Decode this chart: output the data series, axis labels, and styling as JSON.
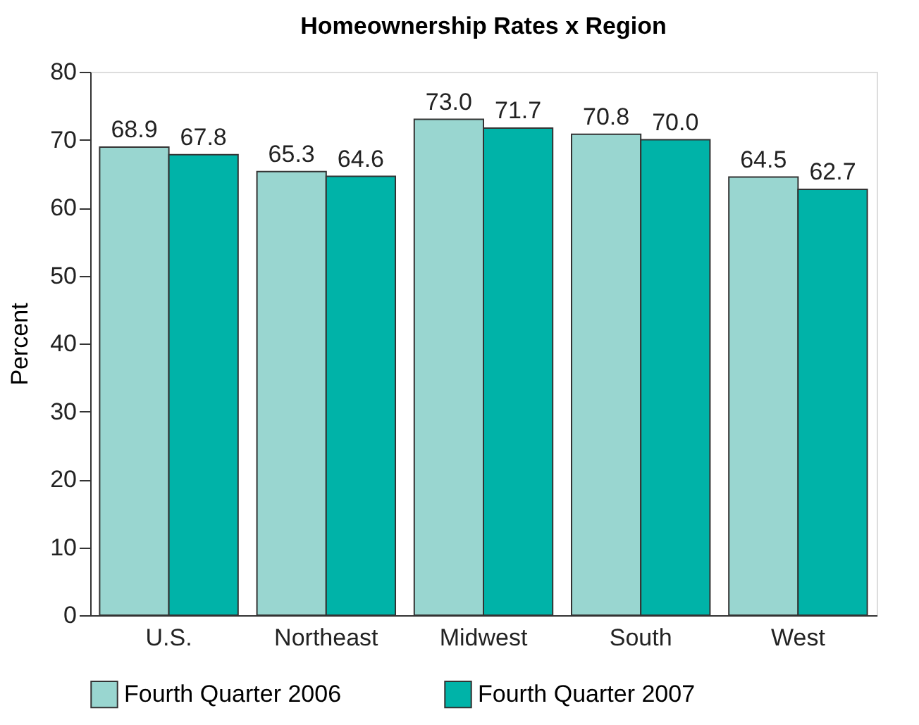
{
  "chart_data": {
    "type": "bar",
    "title": "Homeownership Rates x Region",
    "ylabel": "Percent",
    "categories": [
      "U.S.",
      "Northeast",
      "Midwest",
      "South",
      "West"
    ],
    "series": [
      {
        "name": "Fourth Quarter 2006",
        "color": "#99d6d0",
        "values": [
          68.9,
          65.3,
          73.0,
          70.8,
          64.5
        ],
        "value_labels": [
          "68.9",
          "65.3",
          "73.0",
          "70.8",
          "64.5"
        ]
      },
      {
        "name": "Fourth Quarter 2007",
        "color": "#00b3a8",
        "values": [
          67.8,
          64.6,
          71.7,
          70.0,
          62.7
        ],
        "value_labels": [
          "67.8",
          "64.6",
          "71.7",
          "70.0",
          "62.7"
        ]
      }
    ],
    "ylim": [
      0,
      80
    ],
    "yticks": [
      0,
      10,
      20,
      30,
      40,
      50,
      60,
      70,
      80
    ],
    "grid": false,
    "legend": "bottom"
  }
}
